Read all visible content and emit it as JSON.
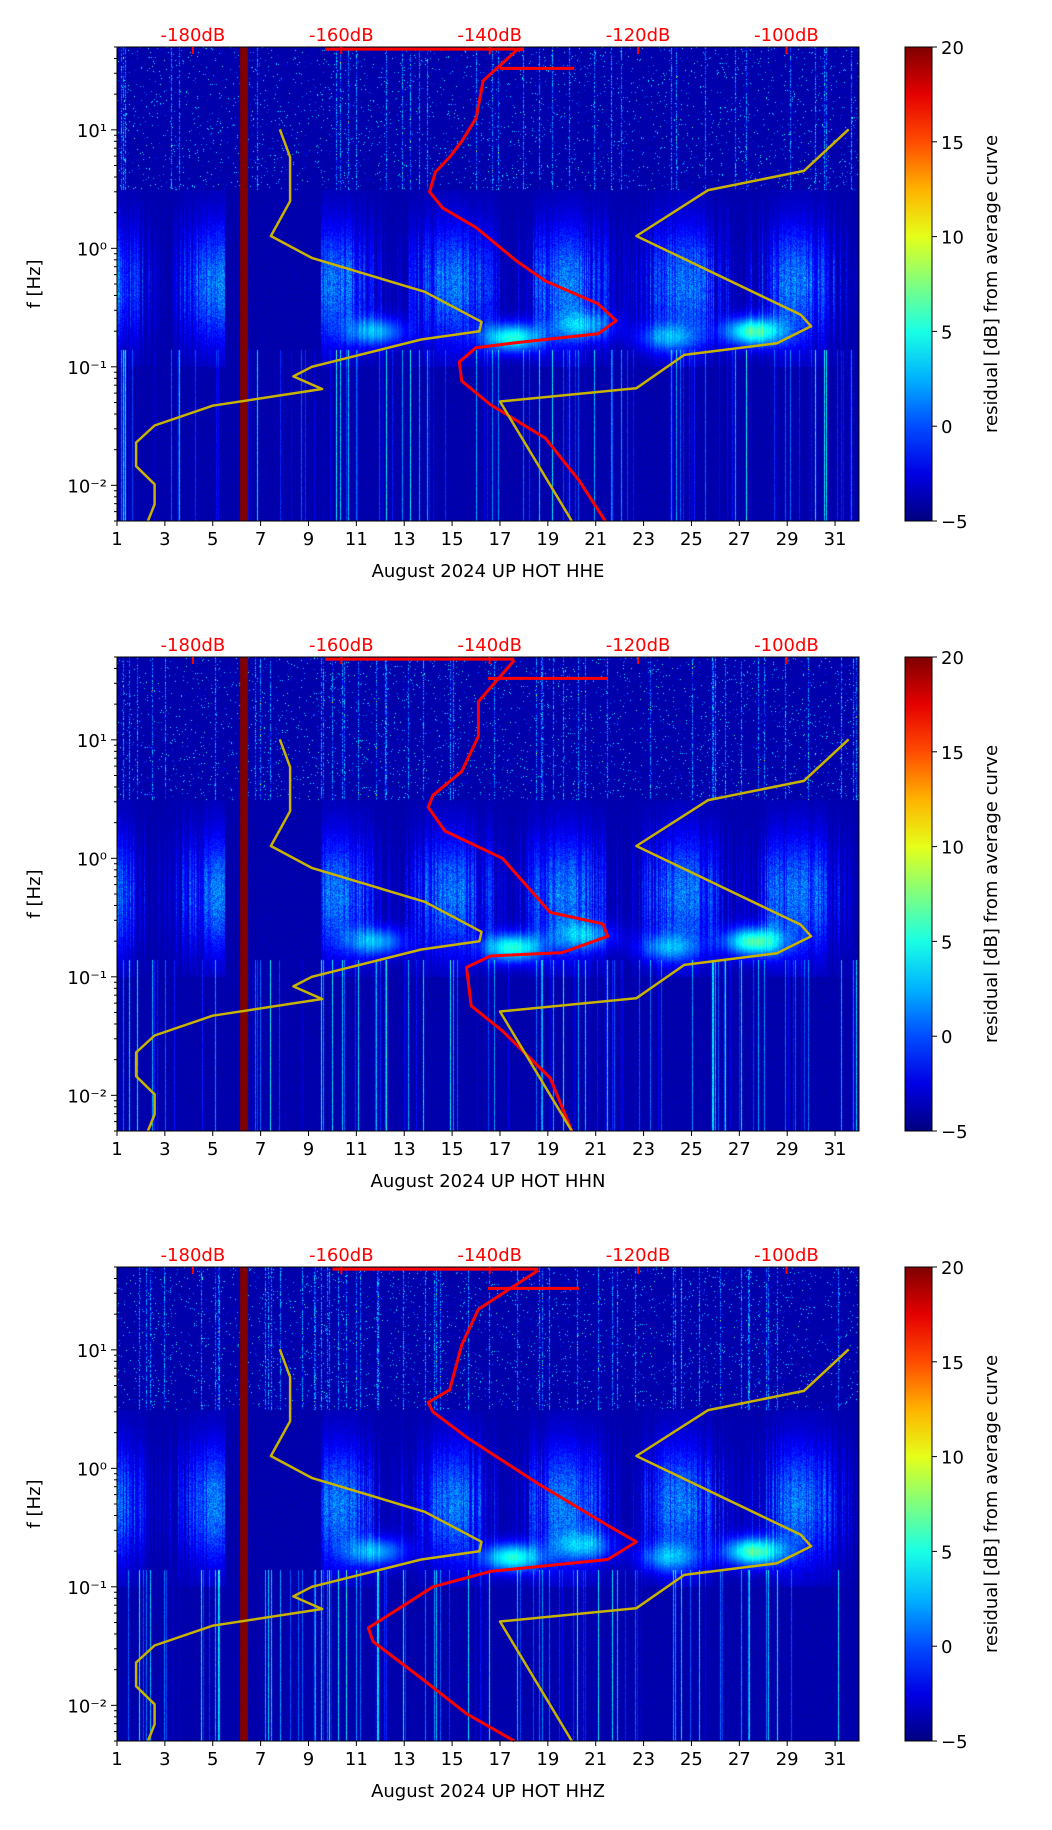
{
  "chart_data": [
    {
      "type": "heatmap",
      "xlabel": "August 2024 UP HOT  HHE",
      "ylabel": "f [Hz]",
      "xlim": [
        1,
        32
      ],
      "ylim_hz": [
        0.005,
        50
      ],
      "yscale": "log",
      "xticks": [
        1,
        3,
        5,
        7,
        9,
        11,
        13,
        15,
        17,
        19,
        21,
        23,
        25,
        27,
        29,
        31
      ],
      "yticks": [
        {
          "v": 10,
          "label": "10¹"
        },
        {
          "v": 1,
          "label": "10⁰"
        },
        {
          "v": 0.1,
          "label": "10⁻¹"
        },
        {
          "v": 0.01,
          "label": "10⁻²"
        }
      ],
      "top_axis": {
        "ticks_db": [
          -180,
          -160,
          -140,
          -120,
          -100
        ],
        "labels": [
          "-180dB",
          "-160dB",
          "-140dB",
          "-120dB",
          "-100dB"
        ]
      },
      "colorbar": {
        "label": "residual [dB] from average curve",
        "range": [
          -5,
          20
        ],
        "ticks": [
          -5,
          0,
          5,
          10,
          15,
          20
        ]
      },
      "series": [
        {
          "name": "average PSD",
          "color": "#ff0000",
          "points": [
            [
              18.0,
              48
            ],
            [
              17.7,
              47
            ],
            [
              16.3,
              26
            ],
            [
              16.0,
              12.5
            ],
            [
              15.4,
              8
            ],
            [
              14.9,
              5.9
            ],
            [
              14.3,
              4.4
            ],
            [
              14.06,
              3.0
            ],
            [
              14.6,
              2.2
            ],
            [
              16.0,
              1.5
            ],
            [
              17.7,
              0.78
            ],
            [
              18.9,
              0.53
            ],
            [
              21.1,
              0.34
            ],
            [
              21.86,
              0.245
            ],
            [
              21.1,
              0.19
            ],
            [
              17.7,
              0.16
            ],
            [
              16.0,
              0.145
            ],
            [
              15.3,
              0.11
            ],
            [
              15.4,
              0.076
            ],
            [
              16.6,
              0.048
            ],
            [
              18.9,
              0.025
            ],
            [
              20.3,
              0.011
            ],
            [
              21.4,
              0.005
            ]
          ]
        },
        {
          "name": "average PSD spike",
          "color": "#ff0000",
          "points": [
            [
              9.7,
              48
            ],
            [
              18.0,
              48
            ]
          ]
        },
        {
          "name": "average PSD spike",
          "color": "#ff0000",
          "points": [
            [
              17.0,
              33
            ],
            [
              20.1,
              33
            ]
          ]
        },
        {
          "name": "NLNM",
          "color": "#c8b400",
          "points": [
            [
              7.8,
              10.1
            ],
            [
              8.23,
              5.9
            ],
            [
              8.23,
              2.5
            ],
            [
              7.43,
              1.27
            ],
            [
              9.14,
              0.83
            ],
            [
              13.86,
              0.43
            ],
            [
              16.23,
              0.24
            ],
            [
              16.14,
              0.2
            ],
            [
              13.71,
              0.17
            ],
            [
              9.14,
              0.1
            ],
            [
              8.37,
              0.083
            ],
            [
              9.57,
              0.065
            ],
            [
              5.0,
              0.047
            ],
            [
              2.57,
              0.032
            ],
            [
              1.8,
              0.023
            ],
            [
              1.8,
              0.0145
            ],
            [
              2.57,
              0.0102
            ],
            [
              2.57,
              0.0069
            ],
            [
              2.29,
              0.005
            ]
          ]
        },
        {
          "name": "NHNM",
          "color": "#c8b400",
          "points": [
            [
              31.57,
              10.1
            ],
            [
              29.7,
              4.5
            ],
            [
              25.7,
              3.1
            ],
            [
              22.7,
              1.27
            ],
            [
              29.57,
              0.275
            ],
            [
              30.0,
              0.22
            ],
            [
              28.57,
              0.158
            ],
            [
              24.7,
              0.126
            ],
            [
              22.7,
              0.066
            ],
            [
              17.0,
              0.051
            ],
            [
              20.0,
              0.005
            ]
          ]
        }
      ]
    },
    {
      "type": "heatmap",
      "xlabel": "August 2024 UP HOT  HHN",
      "ylabel": "f [Hz]",
      "xlim": [
        1,
        32
      ],
      "ylim_hz": [
        0.005,
        50
      ],
      "yscale": "log",
      "xticks": [
        1,
        3,
        5,
        7,
        9,
        11,
        13,
        15,
        17,
        19,
        21,
        23,
        25,
        27,
        29,
        31
      ],
      "yticks": [
        {
          "v": 10,
          "label": "10¹"
        },
        {
          "v": 1,
          "label": "10⁰"
        },
        {
          "v": 0.1,
          "label": "10⁻¹"
        },
        {
          "v": 0.01,
          "label": "10⁻²"
        }
      ],
      "top_axis": {
        "ticks_db": [
          -180,
          -160,
          -140,
          -120,
          -100
        ],
        "labels": [
          "-180dB",
          "-160dB",
          "-140dB",
          "-120dB",
          "-100dB"
        ]
      },
      "colorbar": {
        "label": "residual [dB] from average curve",
        "range": [
          -5,
          20
        ],
        "ticks": [
          -5,
          0,
          5,
          10,
          15,
          20
        ]
      },
      "series": [
        {
          "name": "average PSD",
          "color": "#ff0000",
          "points": [
            [
              17.6,
              47
            ],
            [
              16.1,
              21
            ],
            [
              16.1,
              10.7
            ],
            [
              15.4,
              5.4
            ],
            [
              14.2,
              3.4
            ],
            [
              14.0,
              2.7
            ],
            [
              14.7,
              1.7
            ],
            [
              17.1,
              1.0
            ],
            [
              19.1,
              0.35
            ],
            [
              21.3,
              0.28
            ],
            [
              21.5,
              0.22
            ],
            [
              19.6,
              0.16
            ],
            [
              16.6,
              0.15
            ],
            [
              15.6,
              0.12
            ],
            [
              15.8,
              0.057
            ],
            [
              17.1,
              0.035
            ],
            [
              19.1,
              0.014
            ],
            [
              20.0,
              0.005
            ]
          ]
        },
        {
          "name": "average PSD spike",
          "color": "#ff0000",
          "points": [
            [
              9.7,
              48
            ],
            [
              17.6,
              48
            ]
          ]
        },
        {
          "name": "average PSD spike",
          "color": "#ff0000",
          "points": [
            [
              16.5,
              33
            ],
            [
              21.5,
              33
            ]
          ]
        },
        {
          "name": "NLNM",
          "color": "#c8b400",
          "points": [
            [
              7.8,
              10.1
            ],
            [
              8.23,
              5.9
            ],
            [
              8.23,
              2.5
            ],
            [
              7.43,
              1.27
            ],
            [
              9.14,
              0.83
            ],
            [
              13.86,
              0.43
            ],
            [
              16.23,
              0.24
            ],
            [
              16.14,
              0.2
            ],
            [
              13.71,
              0.17
            ],
            [
              9.14,
              0.1
            ],
            [
              8.37,
              0.083
            ],
            [
              9.57,
              0.065
            ],
            [
              5.0,
              0.047
            ],
            [
              2.57,
              0.032
            ],
            [
              1.8,
              0.023
            ],
            [
              1.8,
              0.0145
            ],
            [
              2.57,
              0.0102
            ],
            [
              2.57,
              0.0069
            ],
            [
              2.29,
              0.005
            ]
          ]
        },
        {
          "name": "NHNM",
          "color": "#c8b400",
          "points": [
            [
              31.57,
              10.1
            ],
            [
              29.7,
              4.5
            ],
            [
              25.7,
              3.1
            ],
            [
              22.7,
              1.27
            ],
            [
              29.57,
              0.275
            ],
            [
              30.0,
              0.22
            ],
            [
              28.57,
              0.158
            ],
            [
              24.7,
              0.126
            ],
            [
              22.7,
              0.066
            ],
            [
              17.0,
              0.051
            ],
            [
              20.0,
              0.005
            ]
          ]
        }
      ]
    },
    {
      "type": "heatmap",
      "xlabel": "August 2024 UP HOT  HHZ",
      "ylabel": "f [Hz]",
      "xlim": [
        1,
        32
      ],
      "ylim_hz": [
        0.005,
        50
      ],
      "yscale": "log",
      "xticks": [
        1,
        3,
        5,
        7,
        9,
        11,
        13,
        15,
        17,
        19,
        21,
        23,
        25,
        27,
        29,
        31
      ],
      "yticks": [
        {
          "v": 10,
          "label": "10¹"
        },
        {
          "v": 1,
          "label": "10⁰"
        },
        {
          "v": 0.1,
          "label": "10⁻¹"
        },
        {
          "v": 0.01,
          "label": "10⁻²"
        }
      ],
      "top_axis": {
        "ticks_db": [
          -180,
          -160,
          -140,
          -120,
          -100
        ],
        "labels": [
          "-180dB",
          "-160dB",
          "-140dB",
          "-120dB",
          "-100dB"
        ]
      },
      "colorbar": {
        "label": "residual [dB] from average curve",
        "range": [
          -5,
          20
        ],
        "ticks": [
          -5,
          0,
          5,
          10,
          15,
          20
        ]
      },
      "series": [
        {
          "name": "average PSD",
          "color": "#ff0000",
          "points": [
            [
              18.6,
              47
            ],
            [
              16.1,
              22
            ],
            [
              15.4,
              11
            ],
            [
              14.9,
              4.6
            ],
            [
              14.0,
              3.6
            ],
            [
              14.2,
              3.0
            ],
            [
              15.6,
              1.83
            ],
            [
              18.6,
              0.74
            ],
            [
              21.5,
              0.33
            ],
            [
              22.7,
              0.24
            ],
            [
              21.5,
              0.17
            ],
            [
              16.6,
              0.135
            ],
            [
              14.2,
              0.1
            ],
            [
              13.0,
              0.07
            ],
            [
              11.5,
              0.045
            ],
            [
              11.7,
              0.0345
            ],
            [
              13.7,
              0.017
            ],
            [
              15.6,
              0.0085
            ],
            [
              17.6,
              0.005
            ]
          ]
        },
        {
          "name": "average PSD spike",
          "color": "#ff0000",
          "points": [
            [
              10.0,
              48
            ],
            [
              18.6,
              48
            ]
          ]
        },
        {
          "name": "average PSD spike",
          "color": "#ff0000",
          "points": [
            [
              16.5,
              33
            ],
            [
              20.3,
              33
            ]
          ]
        },
        {
          "name": "NLNM",
          "color": "#c8b400",
          "points": [
            [
              7.8,
              10.1
            ],
            [
              8.23,
              5.9
            ],
            [
              8.23,
              2.5
            ],
            [
              7.43,
              1.27
            ],
            [
              9.14,
              0.83
            ],
            [
              13.86,
              0.43
            ],
            [
              16.23,
              0.24
            ],
            [
              16.14,
              0.2
            ],
            [
              13.71,
              0.17
            ],
            [
              9.14,
              0.1
            ],
            [
              8.37,
              0.083
            ],
            [
              9.57,
              0.065
            ],
            [
              5.0,
              0.047
            ],
            [
              2.57,
              0.032
            ],
            [
              1.8,
              0.023
            ],
            [
              1.8,
              0.0145
            ],
            [
              2.57,
              0.0102
            ],
            [
              2.57,
              0.0069
            ],
            [
              2.29,
              0.005
            ]
          ]
        },
        {
          "name": "NHNM",
          "color": "#c8b400",
          "points": [
            [
              31.57,
              10.1
            ],
            [
              29.7,
              4.5
            ],
            [
              25.7,
              3.1
            ],
            [
              22.7,
              1.27
            ],
            [
              29.57,
              0.275
            ],
            [
              30.0,
              0.22
            ],
            [
              28.57,
              0.158
            ],
            [
              24.7,
              0.126
            ],
            [
              22.7,
              0.066
            ],
            [
              17.0,
              0.051
            ],
            [
              20.0,
              0.005
            ]
          ]
        }
      ]
    }
  ]
}
